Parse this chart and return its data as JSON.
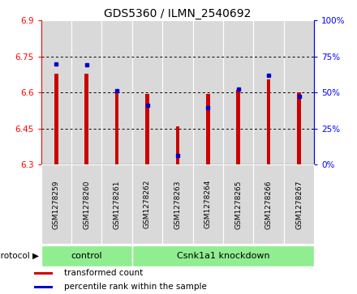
{
  "title": "GDS5360 / ILMN_2540692",
  "samples": [
    "GSM1278259",
    "GSM1278260",
    "GSM1278261",
    "GSM1278262",
    "GSM1278263",
    "GSM1278264",
    "GSM1278265",
    "GSM1278266",
    "GSM1278267"
  ],
  "red_values": [
    6.68,
    6.68,
    6.61,
    6.595,
    6.46,
    6.595,
    6.61,
    6.655,
    6.6
  ],
  "blue_values": [
    6.72,
    6.715,
    6.607,
    6.548,
    6.338,
    6.538,
    6.616,
    6.672,
    6.585
  ],
  "y_min": 6.3,
  "y_max": 6.9,
  "y_ticks_left": [
    6.3,
    6.45,
    6.6,
    6.75,
    6.9
  ],
  "y_ticks_right": [
    0,
    25,
    50,
    75,
    100
  ],
  "bar_color": "#cc0000",
  "marker_color": "#0000cc",
  "protocol_groups": [
    {
      "label": "control",
      "start": 0,
      "end": 3
    },
    {
      "label": "Csnk1a1 knockdown",
      "start": 3,
      "end": 9
    }
  ],
  "legend_items": [
    {
      "label": "transformed count",
      "color": "#cc0000"
    },
    {
      "label": "percentile rank within the sample",
      "color": "#0000cc"
    }
  ],
  "cell_color": "#d9d9d9",
  "proto_color": "#90ee90"
}
